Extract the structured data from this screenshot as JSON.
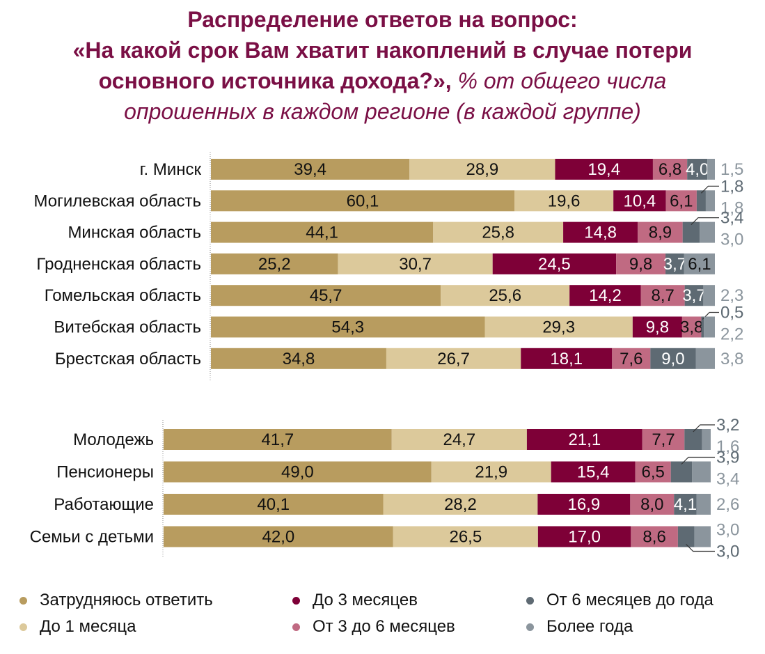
{
  "title": {
    "line1": "Распределение ответов на вопрос:",
    "line2": "«На какой срок Вам хватит накоплений в случае потери",
    "line3_bold": "основного источника дохода?»,",
    "line3_italic": " % от общего числа",
    "line4_italic": "опрошенных в каждом регионе (в каждой группе)"
  },
  "colors": {
    "title": "#7a0f45",
    "series": [
      "#b89c5f",
      "#dcc99b",
      "#7e0037",
      "#c06a82",
      "#5e6a73",
      "#8b959d"
    ]
  },
  "chart_data": {
    "type": "bar",
    "orientation": "horizontal",
    "stacked": true,
    "title": "Распределение ответов на вопрос: «На какой срок Вам хватит накоплений в случае потери основного источника дохода?», % от общего числа опрошенных в каждом регионе (в каждой группе)",
    "xlabel": "",
    "ylabel": "",
    "xlim": [
      0,
      100
    ],
    "grid": false,
    "legend_position": "bottom",
    "series_names": [
      "Затрудняюсь ответить",
      "До 1 месяца",
      "До 3 месяцев",
      "От 3 до 6 месяцев",
      "От 6 месяцев до года",
      "Более года"
    ],
    "groups": [
      {
        "name": "regions",
        "categories": [
          "г. Минск",
          "Могилевская область",
          "Минская область",
          "Гродненская область",
          "Гомельская область",
          "Витебская область",
          "Брестская область"
        ],
        "values": [
          [
            39.4,
            28.9,
            19.4,
            6.8,
            4.0,
            1.5
          ],
          [
            60.1,
            19.6,
            10.4,
            6.1,
            1.8,
            1.8
          ],
          [
            44.1,
            25.8,
            14.8,
            8.9,
            3.4,
            3.0
          ],
          [
            25.2,
            30.7,
            24.5,
            9.8,
            3.7,
            6.1
          ],
          [
            45.7,
            25.6,
            14.2,
            8.7,
            3.7,
            2.3
          ],
          [
            54.3,
            29.3,
            9.8,
            3.8,
            0.5,
            2.2
          ],
          [
            34.8,
            26.7,
            18.1,
            7.6,
            9.0,
            3.8
          ]
        ],
        "labels": [
          [
            "39,4",
            "28,9",
            "19,4",
            "6,8",
            "4,0",
            "1,5"
          ],
          [
            "60,1",
            "19,6",
            "10,4",
            "6,1",
            "1,8",
            "1,8"
          ],
          [
            "44,1",
            "25,8",
            "14,8",
            "8,9",
            "3,4",
            "3,0"
          ],
          [
            "25,2",
            "30,7",
            "24,5",
            "9,8",
            "3,7",
            "6,1"
          ],
          [
            "45,7",
            "25,6",
            "14,2",
            "8,7",
            "3,7",
            "2,3"
          ],
          [
            "54,3",
            "29,3",
            "9,8",
            "3,8",
            "0,5",
            "2,2"
          ],
          [
            "34,8",
            "26,7",
            "18,1",
            "7,6",
            "9,0",
            "3,8"
          ]
        ],
        "label_modes": [
          [
            "in",
            "in",
            "in",
            "in",
            "in",
            "out"
          ],
          [
            "in",
            "in",
            "in",
            "in",
            "callout-top",
            "out-bottom"
          ],
          [
            "in",
            "in",
            "in",
            "in",
            "callout-top",
            "out-bottom"
          ],
          [
            "in",
            "in",
            "in",
            "in",
            "in",
            "in"
          ],
          [
            "in",
            "in",
            "in",
            "in",
            "in",
            "out"
          ],
          [
            "in",
            "in",
            "in",
            "in",
            "callout-top",
            "out-bottom"
          ],
          [
            "in",
            "in",
            "in",
            "in",
            "in",
            "out"
          ]
        ]
      },
      {
        "name": "social-groups",
        "categories": [
          "Молодежь",
          "Пенсионеры",
          "Работающие",
          "Семьи с детьми"
        ],
        "values": [
          [
            41.7,
            24.7,
            21.1,
            7.7,
            3.2,
            1.6
          ],
          [
            49.0,
            21.9,
            15.4,
            6.5,
            3.9,
            3.4
          ],
          [
            40.1,
            28.2,
            16.9,
            8.0,
            4.1,
            2.6
          ],
          [
            42.0,
            26.5,
            17.0,
            8.6,
            3.0,
            3.0
          ]
        ],
        "labels": [
          [
            "41,7",
            "24,7",
            "21,1",
            "7,7",
            "3,2",
            "1,6"
          ],
          [
            "49,0",
            "21,9",
            "15,4",
            "6,5",
            "3,9",
            "3,4"
          ],
          [
            "40,1",
            "28,2",
            "16,9",
            "8,0",
            "4,1",
            "2,6"
          ],
          [
            "42,0",
            "26,5",
            "17,0",
            "8,6",
            "3,0",
            "3,0"
          ]
        ],
        "label_modes": [
          [
            "in",
            "in",
            "in",
            "in",
            "callout-top",
            "out-bottom"
          ],
          [
            "in",
            "in",
            "in",
            "in",
            "callout-top",
            "out-bottom"
          ],
          [
            "in",
            "in",
            "in",
            "in",
            "in",
            "out"
          ],
          [
            "in",
            "in",
            "in",
            "in",
            "callout-bottom",
            "out-top"
          ]
        ]
      }
    ]
  },
  "legend": [
    {
      "label": "Затрудняюсь ответить",
      "color": "#b89c5f"
    },
    {
      "label": "До 1 месяца",
      "color": "#dcc99b"
    },
    {
      "label": "До 3 месяцев",
      "color": "#7e0037"
    },
    {
      "label": "От 3 до 6 месяцев",
      "color": "#c06a82"
    },
    {
      "label": "От 6 месяцев до года",
      "color": "#5e6a73"
    },
    {
      "label": "Более года",
      "color": "#8b959d"
    }
  ]
}
